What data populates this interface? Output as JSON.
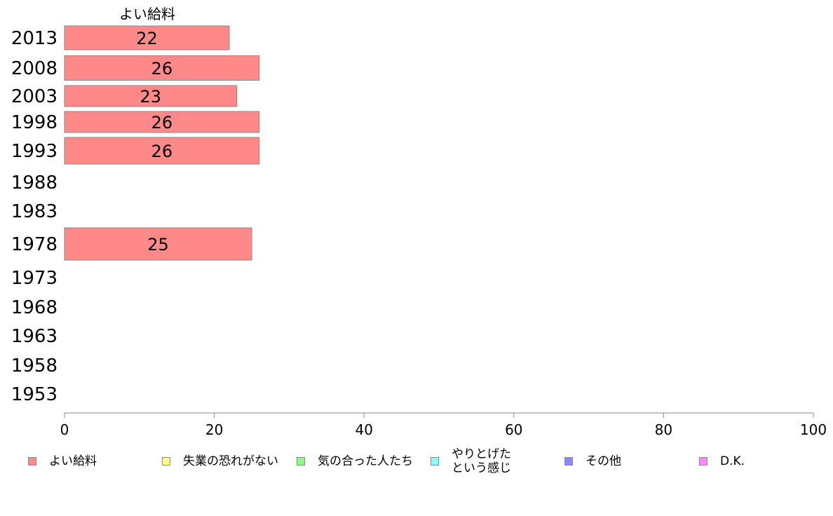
{
  "chart_data": {
    "type": "bar",
    "orientation": "horizontal",
    "title": "よい給料",
    "categories": [
      "2013",
      "2008",
      "2003",
      "1998",
      "1993",
      "1988",
      "1983",
      "1978",
      "1973",
      "1968",
      "1963",
      "1958",
      "1953"
    ],
    "series": [
      {
        "name": "よい給料",
        "color": "#ff8888",
        "values": [
          22,
          26,
          23,
          26,
          26,
          null,
          null,
          25,
          null,
          null,
          null,
          null,
          null
        ],
        "labels": [
          "22",
          "26",
          "23",
          "26",
          "26",
          "",
          "",
          "25",
          "",
          "",
          "",
          "",
          ""
        ]
      }
    ],
    "xlim": [
      0,
      100
    ],
    "xticks": [
      "0",
      "20",
      "40",
      "60",
      "80",
      "100"
    ],
    "grid": false,
    "legend_position": "bottom",
    "legend": [
      {
        "label": "よい給料",
        "color": "#ff8888"
      },
      {
        "label": "失業の恐れがない",
        "color": "#ffff88"
      },
      {
        "label": "気の合った人たち",
        "color": "#88ff88"
      },
      {
        "label": "やりとげた\nという感じ",
        "color": "#88ffff"
      },
      {
        "label": "その他",
        "color": "#8888ff"
      },
      {
        "label": "D.K.",
        "color": "#ff88ff"
      }
    ]
  }
}
